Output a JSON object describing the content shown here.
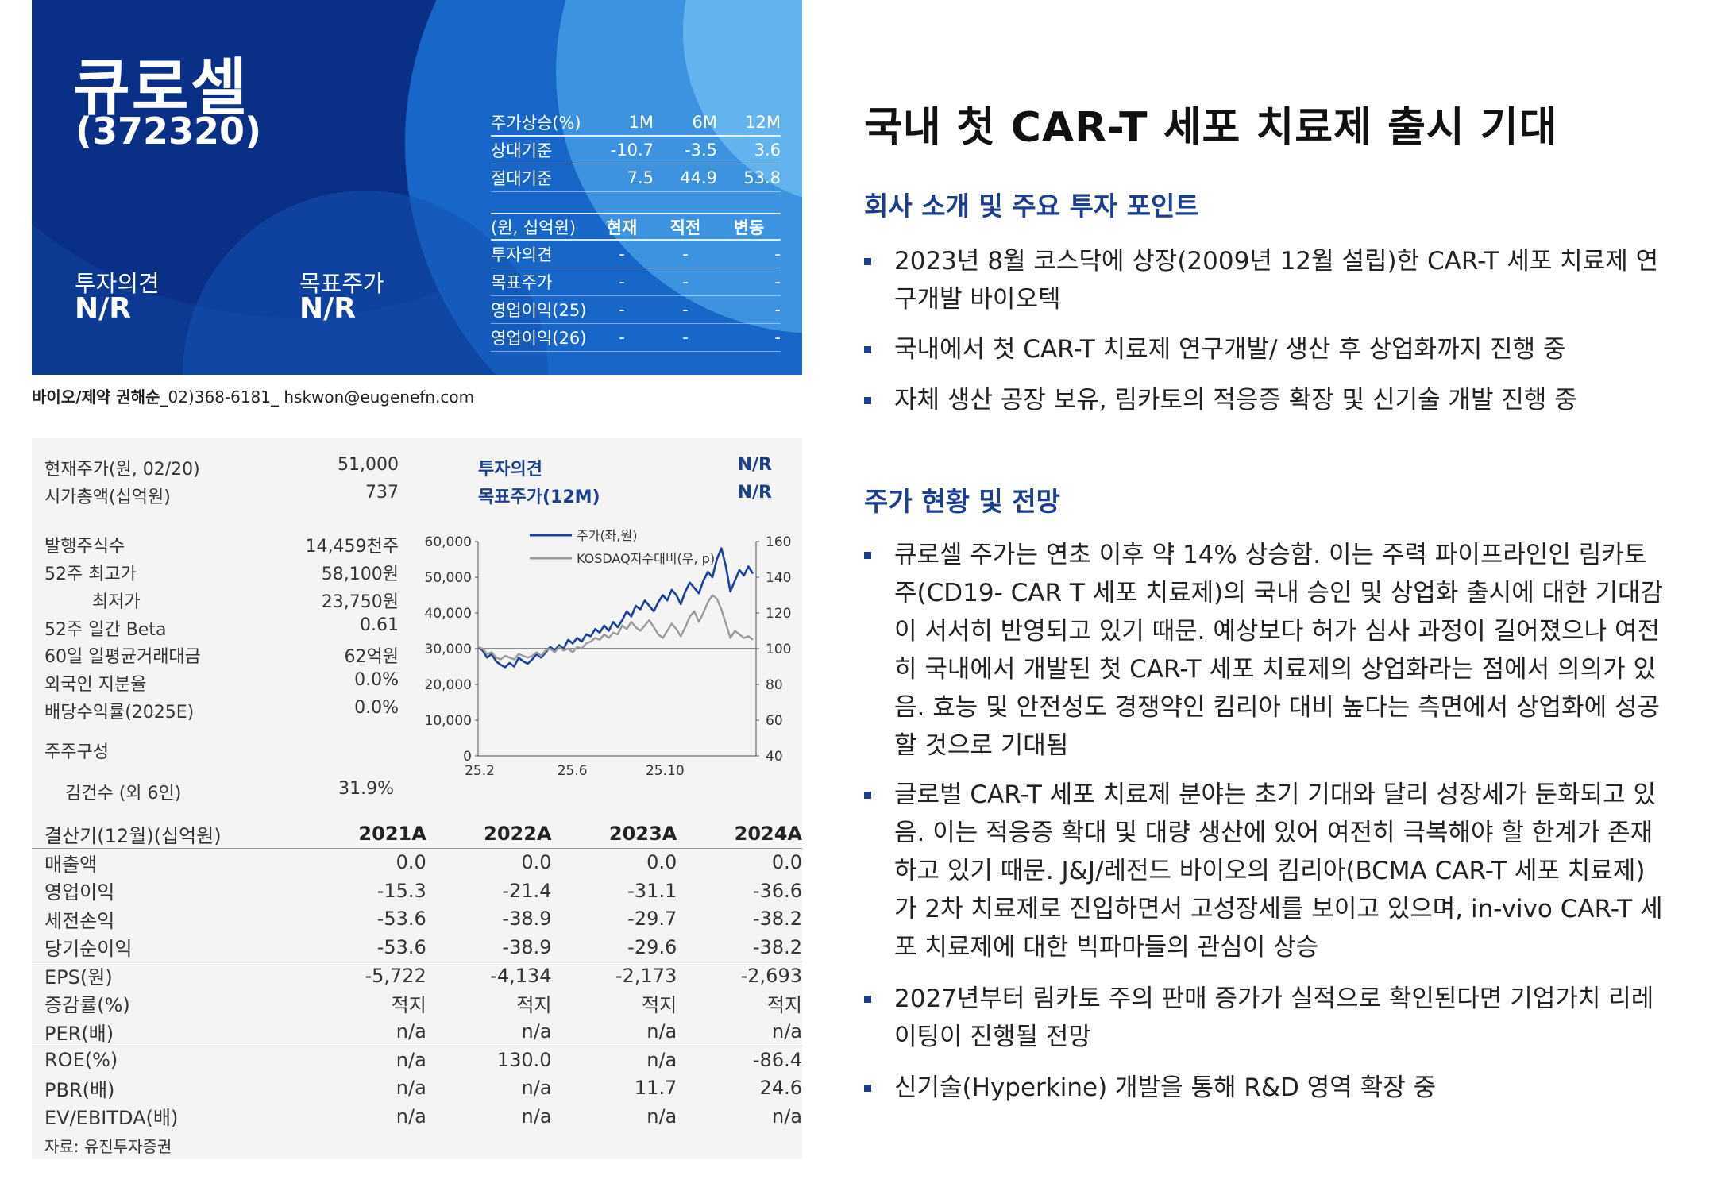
{
  "header": {
    "company_name": "큐로셀",
    "company_code": "(372320)",
    "opinion_label": "투자의견",
    "opinion_value": "N/R",
    "target_label": "목표주가",
    "target_value": "N/R",
    "perf_table": {
      "headers": [
        "주가상승(%)",
        "1M",
        "6M",
        "12M"
      ],
      "rows": [
        [
          "상대기준",
          "-10.7",
          "-3.5",
          "3.6"
        ],
        [
          "절대기준",
          "7.5",
          "44.9",
          "53.8"
        ]
      ]
    },
    "estimate_table": {
      "headers": [
        "(원, 십억원)",
        "현재",
        "직전",
        "변동"
      ],
      "rows": [
        [
          "투자의견",
          "-",
          "-",
          "-"
        ],
        [
          "목표주가",
          "-",
          "-",
          "-"
        ],
        [
          "영업이익(25)",
          "-",
          "-",
          "-"
        ],
        [
          "영업이익(26)",
          "-",
          "-",
          "-"
        ]
      ]
    }
  },
  "analyst": {
    "sector_name": "바이오/제약 권해순",
    "contact": "_02)368-6181_ hskwon@eugenefn.com"
  },
  "stock_info": {
    "current_price_label": "현재주가(원, 02/20)",
    "current_price": "51,000",
    "market_cap_label": "시가총액(십억원)",
    "market_cap": "737",
    "opinion_label": "투자의견",
    "opinion_value": "N/R",
    "target_label": "목표주가(12M)",
    "target_value": "N/R",
    "items": [
      {
        "label": "발행주식수",
        "value": "14,459천주"
      },
      {
        "label": "52주 최고가",
        "value": "58,100원"
      },
      {
        "label": "최저가",
        "value": "23,750원"
      },
      {
        "label": "52주 일간 Beta",
        "value": "0.61"
      },
      {
        "label": "60일 일평균거래대금",
        "value": "62억원"
      },
      {
        "label": "외국인 지분율",
        "value": "0.0%"
      },
      {
        "label": "배당수익률(2025E)",
        "value": "0.0%"
      }
    ],
    "holders_label": "주주구성",
    "holder_name": "김건수 (외 6인)",
    "holder_value": "31.9%"
  },
  "chart_data": {
    "type": "line",
    "x_ticks": [
      "25.2",
      "25.6",
      "25.10"
    ],
    "y_left_ticks": [
      "0",
      "10,000",
      "20,000",
      "30,000",
      "40,000",
      "50,000",
      "60,000"
    ],
    "y_right_ticks": [
      "40",
      "60",
      "80",
      "100",
      "120",
      "140",
      "160"
    ],
    "ylim_left": [
      0,
      60000
    ],
    "ylim_right": [
      40,
      160
    ],
    "reference_line_right": 100,
    "series": [
      {
        "name": "주가(좌,원)",
        "color": "#1b3f9e",
        "axis": "left",
        "values": [
          30500,
          29500,
          27500,
          28500,
          26500,
          25500,
          24800,
          26000,
          25000,
          27500,
          26500,
          25800,
          27000,
          28500,
          27500,
          29000,
          30500,
          29500,
          31000,
          30000,
          32500,
          31500,
          33000,
          32000,
          34000,
          33500,
          35500,
          34500,
          36500,
          35000,
          37500,
          36000,
          38000,
          40500,
          39000,
          42000,
          41000,
          43500,
          42000,
          40500,
          43000,
          45000,
          43500,
          46500,
          45000,
          42500,
          46000,
          48500,
          47000,
          45500,
          49000,
          51500,
          50000,
          55000,
          58100,
          53000,
          46000,
          49000,
          52000,
          50500,
          53000,
          51000
        ]
      },
      {
        "name": "KOSDAQ지수대비(우, p)",
        "color": "#9a9a9a",
        "axis": "right",
        "values": [
          101,
          100,
          97,
          98,
          95,
          94,
          96,
          95,
          94,
          97,
          96,
          95,
          96,
          98,
          96,
          99,
          100,
          98,
          101,
          99,
          100,
          98,
          101,
          100,
          103,
          104,
          106,
          105,
          108,
          106,
          109,
          108,
          113,
          111,
          115,
          112,
          110,
          113,
          116,
          112,
          108,
          106,
          110,
          114,
          111,
          107,
          112,
          118,
          121,
          115,
          120,
          126,
          130,
          128,
          122,
          114,
          106,
          110,
          108,
          106,
          107,
          105
        ]
      }
    ]
  },
  "financials": {
    "headers": [
      "결산기(12월)(십억원)",
      "2021A",
      "2022A",
      "2023A",
      "2024A"
    ],
    "rows": [
      {
        "label": "매출액",
        "values": [
          "0.0",
          "0.0",
          "0.0",
          "0.0"
        ]
      },
      {
        "label": "영업이익",
        "values": [
          "-15.3",
          "-21.4",
          "-31.1",
          "-36.6"
        ]
      },
      {
        "label": "세전손익",
        "values": [
          "-53.6",
          "-38.9",
          "-29.7",
          "-38.2"
        ]
      },
      {
        "label": "당기순이익",
        "values": [
          "-53.6",
          "-38.9",
          "-29.6",
          "-38.2"
        ]
      },
      {
        "label": "EPS(원)",
        "values": [
          "-5,722",
          "-4,134",
          "-2,173",
          "-2,693"
        ]
      },
      {
        "label": "증감률(%)",
        "values": [
          "적지",
          "적지",
          "적지",
          "적지"
        ]
      },
      {
        "label": "PER(배)",
        "values": [
          "n/a",
          "n/a",
          "n/a",
          "n/a"
        ]
      },
      {
        "label": "ROE(%)",
        "values": [
          "n/a",
          "130.0",
          "n/a",
          "-86.4"
        ]
      },
      {
        "label": "PBR(배)",
        "values": [
          "n/a",
          "n/a",
          "11.7",
          "24.6"
        ]
      },
      {
        "label": "EV/EBITDA(배)",
        "values": [
          "n/a",
          "n/a",
          "n/a",
          "n/a"
        ]
      }
    ],
    "source": "자료: 유진투자증권"
  },
  "report": {
    "title": "국내 첫 CAR-T 세포 치료제 출시 기대",
    "section1_title": "회사 소개 및 주요 투자 포인트",
    "section1_bullets": [
      "2023년 8월 코스닥에 상장(2009년 12월 설립)한 CAR-T 세포 치료제 연구개발 바이오텍",
      "국내에서 첫 CAR-T 치료제 연구개발/ 생산 후 상업화까지 진행 중",
      "자체 생산 공장 보유, 림카토의 적응증 확장 및 신기술 개발 진행 중"
    ],
    "section2_title": "주가 현황 및 전망",
    "section2_bullets": [
      "큐로셀 주가는 연초 이후 약 14% 상승함. 이는 주력 파이프라인인 림카토 주(CD19- CAR T 세포 치료제)의 국내 승인 및 상업화 출시에 대한 기대감이 서서히 반영되고 있기 때문. 예상보다 허가 심사 과정이 길어졌으나 여전히 국내에서 개발된 첫 CAR-T 세포 치료제의 상업화라는 점에서 의의가 있음. 효능 및 안전성도 경쟁약인 킴리아 대비 높다는 측면에서 상업화에 성공할 것으로 기대됨",
      "글로벌 CAR-T 세포 치료제 분야는 초기 기대와 달리 성장세가 둔화되고 있음. 이는 적응증 확대 및 대량 생산에 있어 여전히 극복해야 할 한계가 존재하고 있기 때문. J&J/레전드 바이오의 킴리아(BCMA CAR-T 세포 치료제)가 2차 치료제로 진입하면서 고성장세를 보이고 있으며, in-vivo CAR-T 세포 치료제에 대한 빅파마들의 관심이 상승",
      "2027년부터 림카토 주의 판매 증가가 실적으로 확인된다면 기업가치 리레이팅이 진행될 전망",
      "신기술(Hyperkine) 개발을 통해 R&D 영역 확장 중"
    ]
  }
}
